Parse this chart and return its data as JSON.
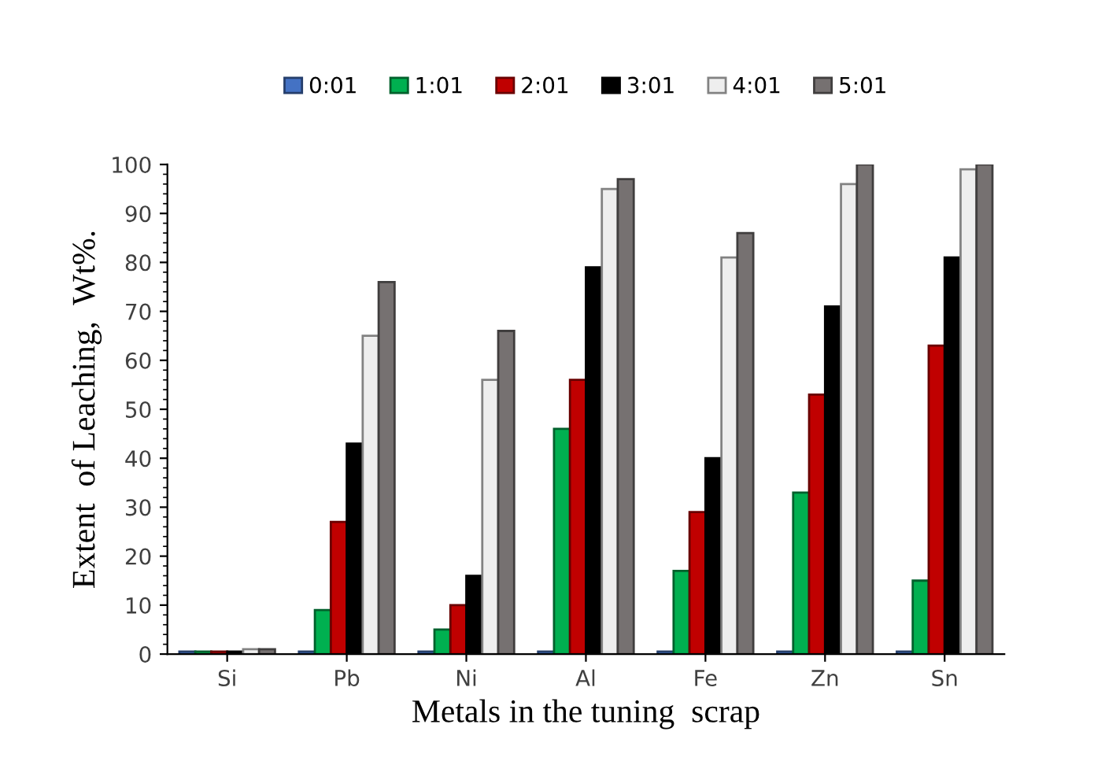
{
  "chart_data": {
    "type": "bar",
    "xlabel": "Metals in the tuning  scrap",
    "ylabel": "Extent  of Leaching,  Wt%.",
    "categories": [
      "Si",
      "Pb",
      "Ni",
      "Al",
      "Fe",
      "Zn",
      "Sn"
    ],
    "series": [
      {
        "name": "0:01",
        "color": "#4472c4",
        "values": [
          0.5,
          0.5,
          0.5,
          0.5,
          0.5,
          0.5,
          0.5
        ]
      },
      {
        "name": "1:01",
        "color": "#00b050",
        "values": [
          0.5,
          9,
          5,
          46,
          17,
          33,
          15
        ]
      },
      {
        "name": "2:01",
        "color": "#c00000",
        "values": [
          0.5,
          27,
          10,
          56,
          29,
          53,
          63
        ]
      },
      {
        "name": "3:01",
        "color": "#000000",
        "values": [
          0.5,
          43,
          16,
          79,
          40,
          71,
          81
        ]
      },
      {
        "name": "4:01",
        "color": "#eeeeee",
        "values": [
          1,
          65,
          56,
          95,
          81,
          96,
          99
        ]
      },
      {
        "name": "5:01",
        "color": "#767171",
        "values": [
          1,
          76,
          66,
          97,
          86,
          100,
          100
        ]
      }
    ],
    "ylim": [
      0,
      100
    ],
    "yticks": [
      0,
      10,
      20,
      30,
      40,
      50,
      60,
      70,
      80,
      90,
      100
    ],
    "grid": false,
    "legend": "top"
  }
}
